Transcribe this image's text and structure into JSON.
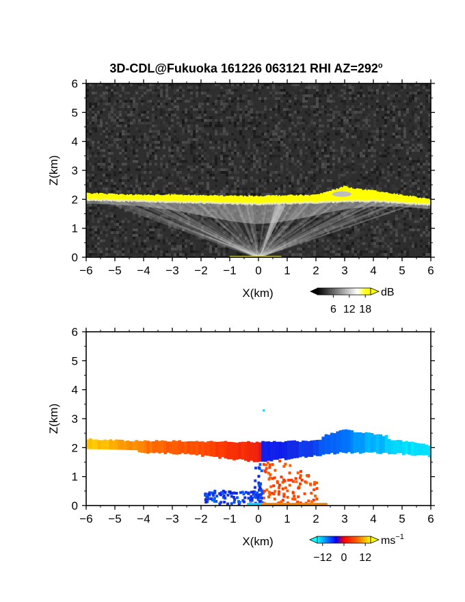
{
  "title_prefix": "3D-CDL@Fukuoka 161226 063121 RHI AZ=292",
  "title_degree": "o",
  "chart_data": [
    {
      "type": "heatmap",
      "name": "backscatter",
      "xlabel": "X(km)",
      "ylabel": "Z(km)",
      "xlim": [
        -6,
        6
      ],
      "ylim": [
        0,
        6
      ],
      "x_ticks": [
        "-6",
        "-5",
        "-4",
        "-3",
        "-2",
        "-1",
        "0",
        "1",
        "2",
        "3",
        "4",
        "5",
        "6"
      ],
      "y_ticks": [
        "0",
        "1",
        "2",
        "3",
        "4",
        "5",
        "6"
      ],
      "grid": false,
      "background": "#2e2e2e",
      "colorbar": {
        "unit": "dB",
        "ticks": [
          "6",
          "12",
          "18"
        ],
        "range": [
          0,
          20
        ],
        "colors": [
          "#000000",
          "#ffffff",
          "#ffff00"
        ]
      },
      "layer_top_km": [
        {
          "x": -6.0,
          "z": 2.22
        },
        {
          "x": -5.5,
          "z": 2.2
        },
        {
          "x": -5.0,
          "z": 2.18
        },
        {
          "x": -4.0,
          "z": 2.15
        },
        {
          "x": -3.0,
          "z": 2.16
        },
        {
          "x": -2.0,
          "z": 2.14
        },
        {
          "x": -1.0,
          "z": 2.12
        },
        {
          "x": 0.0,
          "z": 2.12
        },
        {
          "x": 1.0,
          "z": 2.14
        },
        {
          "x": 2.0,
          "z": 2.15
        },
        {
          "x": 2.5,
          "z": 2.3
        },
        {
          "x": 3.0,
          "z": 2.45
        },
        {
          "x": 3.5,
          "z": 2.35
        },
        {
          "x": 4.0,
          "z": 2.3
        },
        {
          "x": 4.5,
          "z": 2.22
        },
        {
          "x": 5.0,
          "z": 2.15
        },
        {
          "x": 5.5,
          "z": 2.08
        },
        {
          "x": 6.0,
          "z": 2.0
        }
      ],
      "layer_bottom_km": [
        {
          "x": -6.0,
          "z": 2.0
        },
        {
          "x": -5.0,
          "z": 1.98
        },
        {
          "x": -4.0,
          "z": 1.95
        },
        {
          "x": -3.0,
          "z": 1.92
        },
        {
          "x": -2.0,
          "z": 1.9
        },
        {
          "x": -1.0,
          "z": 1.88
        },
        {
          "x": 0.0,
          "z": 1.85
        },
        {
          "x": 1.0,
          "z": 1.88
        },
        {
          "x": 2.0,
          "z": 1.9
        },
        {
          "x": 3.0,
          "z": 1.95
        },
        {
          "x": 4.0,
          "z": 1.95
        },
        {
          "x": 5.0,
          "z": 1.9
        },
        {
          "x": 6.0,
          "z": 1.82
        }
      ]
    },
    {
      "type": "heatmap",
      "name": "doppler_velocity",
      "xlabel": "X(km)",
      "ylabel": "Z(km)",
      "xlim": [
        -6,
        6
      ],
      "ylim": [
        0,
        6
      ],
      "x_ticks": [
        "-6",
        "-5",
        "-4",
        "-3",
        "-2",
        "-1",
        "0",
        "1",
        "2",
        "3",
        "4",
        "5",
        "6"
      ],
      "y_ticks": [
        "0",
        "1",
        "2",
        "3",
        "4",
        "5",
        "6"
      ],
      "grid": false,
      "background": "#ffffff",
      "colorbar": {
        "unit": "ms",
        "unit_exp": "−1",
        "ticks": [
          "−12",
          "0",
          "12"
        ],
        "range": [
          -15,
          15
        ],
        "colors": [
          "#00ffff",
          "#0000ff",
          "#ff0000",
          "#ffff00"
        ]
      },
      "velocity_along_layer_ms": [
        {
          "x": -6.0,
          "v": 13
        },
        {
          "x": -5.0,
          "v": 11
        },
        {
          "x": -4.0,
          "v": 8
        },
        {
          "x": -3.0,
          "v": 6
        },
        {
          "x": -2.0,
          "v": 5
        },
        {
          "x": -1.0,
          "v": 3
        },
        {
          "x": 0.0,
          "v": 2
        },
        {
          "x": 0.15,
          "v": -2
        },
        {
          "x": 1.0,
          "v": -3
        },
        {
          "x": 2.0,
          "v": -5
        },
        {
          "x": 3.0,
          "v": -8
        },
        {
          "x": 4.0,
          "v": -11
        },
        {
          "x": 5.0,
          "v": -13
        },
        {
          "x": 6.0,
          "v": -14
        }
      ]
    }
  ]
}
